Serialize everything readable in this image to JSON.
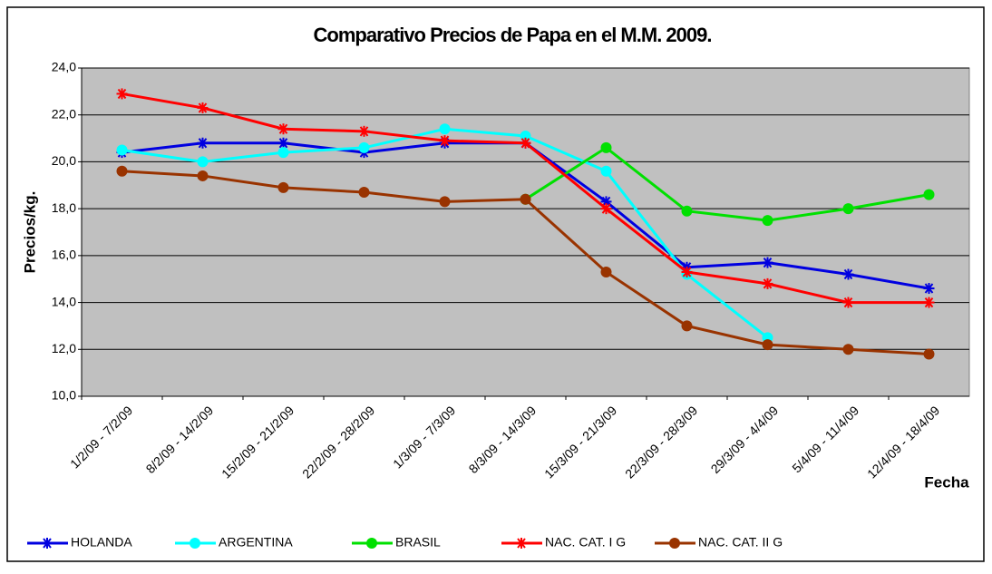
{
  "chart_data": {
    "type": "line",
    "title": "Comparativo Precios de Papa en el M.M. 2009.",
    "y_label": "Precios/kg.",
    "x_label": "Fecha",
    "categories": [
      "1/2/09 - 7/2/09",
      "8/2/09 - 14/2/09",
      "15/2/09 - 21/2/09",
      "22/2/09 - 28/2/09",
      "1/3/09 - 7/3/09",
      "8/3/09 - 14/3/09",
      "15/3/09 - 21/3/09",
      "22/3/09 - 28/3/09",
      "29/3/09 - 4/4/09",
      "5/4/09 - 11/4/09",
      "12/4/09 - 18/4/09"
    ],
    "series": [
      {
        "name": "HOLANDA",
        "color": "#0000e0",
        "marker": "asterisk",
        "values": [
          20.4,
          20.8,
          20.8,
          20.4,
          20.8,
          20.8,
          18.3,
          15.5,
          15.7,
          15.2,
          14.6
        ]
      },
      {
        "name": "ARGENTINA",
        "color": "#00ffff",
        "marker": "circle",
        "values": [
          20.5,
          20.0,
          20.4,
          20.6,
          21.4,
          21.1,
          19.6,
          15.2,
          12.5,
          null,
          null
        ]
      },
      {
        "name": "BRASIL",
        "color": "#00e000",
        "marker": "circle",
        "values": [
          null,
          null,
          null,
          null,
          null,
          18.4,
          20.6,
          17.9,
          17.5,
          18.0,
          18.6
        ]
      },
      {
        "name": "NAC. CAT. I G",
        "color": "#ff0000",
        "marker": "asterisk",
        "values": [
          22.9,
          22.3,
          21.4,
          21.3,
          20.9,
          20.8,
          18.0,
          15.3,
          14.8,
          14.0,
          14.0
        ]
      },
      {
        "name": "NAC. CAT. II G",
        "color": "#993300",
        "marker": "circle",
        "values": [
          19.6,
          19.4,
          18.9,
          18.7,
          18.3,
          18.4,
          15.3,
          13.0,
          12.2,
          12.0,
          11.8
        ]
      }
    ],
    "ylim": [
      10,
      24
    ],
    "yticks": [
      {
        "value": 10,
        "label": "10,0"
      },
      {
        "value": 12,
        "label": "12,0"
      },
      {
        "value": 14,
        "label": "14,0"
      },
      {
        "value": 16,
        "label": "16,0"
      },
      {
        "value": 18,
        "label": "18,0"
      },
      {
        "value": 20,
        "label": "20,0"
      },
      {
        "value": 22,
        "label": "22,0"
      },
      {
        "value": 24,
        "label": "24,0"
      }
    ],
    "grid": true,
    "legend": "bottom"
  }
}
